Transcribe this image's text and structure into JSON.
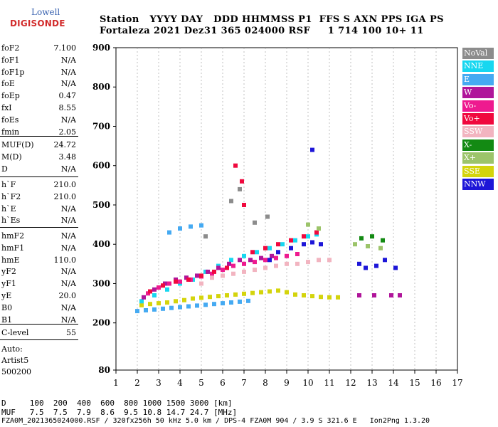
{
  "logo": {
    "top": "Lowell",
    "bottom": "DIGISONDE"
  },
  "header": {
    "line1": "Station   YYYY DAY   DDD HHMMSS P1  FFS S AXN PPS IGA PS",
    "line2": "Fortaleza 2021 Dez31 365 024000 RSF     1 714 100 10+ 11"
  },
  "params_a": [
    {
      "name": "foF2",
      "value": "7.100"
    },
    {
      "name": "foF1",
      "value": "N/A"
    },
    {
      "name": "foF1p",
      "value": "N/A"
    },
    {
      "name": "foE",
      "value": "N/A"
    },
    {
      "name": "foEp",
      "value": "0.47"
    },
    {
      "name": "fxI",
      "value": "8.55"
    },
    {
      "name": "foEs",
      "value": "N/A"
    },
    {
      "name": "fmin",
      "value": "2.05"
    }
  ],
  "params_b": [
    {
      "name": "MUF(D)",
      "value": "24.72"
    },
    {
      "name": "M(D)",
      "value": "3.48"
    },
    {
      "name": "D",
      "value": "N/A"
    }
  ],
  "params_c": [
    {
      "name": "h`F",
      "value": "210.0"
    },
    {
      "name": "h`F2",
      "value": "210.0"
    },
    {
      "name": "h`E",
      "value": "N/A"
    },
    {
      "name": "h`Es",
      "value": "N/A"
    }
  ],
  "params_d": [
    {
      "name": "hmF2",
      "value": "N/A"
    },
    {
      "name": "hmF1",
      "value": "N/A"
    },
    {
      "name": "hmE",
      "value": "110.0"
    },
    {
      "name": "yF2",
      "value": "N/A"
    },
    {
      "name": "yF1",
      "value": "N/A"
    },
    {
      "name": "yE",
      "value": "20.0"
    },
    {
      "name": "B0",
      "value": "N/A"
    },
    {
      "name": "B1",
      "value": "N/A"
    }
  ],
  "params_e": [
    {
      "name": "C-level",
      "value": "55"
    }
  ],
  "auto": {
    "line1": "Auto:",
    "line2": "Artist5",
    "line3": "500200"
  },
  "legend": [
    {
      "label": "NoVal",
      "color": "#8c8c8c"
    },
    {
      "label": "NNE",
      "color": "#17d7f0"
    },
    {
      "label": "E",
      "color": "#45aaf2"
    },
    {
      "label": "W",
      "color": "#b0159a"
    },
    {
      "label": "Vo-",
      "color": "#ee1a8f"
    },
    {
      "label": "Vo+",
      "color": "#f0093e"
    },
    {
      "label": "SSW",
      "color": "#f2b4c0"
    },
    {
      "label": "X-",
      "color": "#138a13"
    },
    {
      "label": "X+",
      "color": "#9cc46a"
    },
    {
      "label": "SSE",
      "color": "#d4d40c"
    },
    {
      "label": "NNW",
      "color": "#1d16d8"
    }
  ],
  "footer": {
    "line1": "D     100  200  400  600  800 1000 1500 3000 [km]",
    "line2": "MUF   7.5  7.5  7.9  8.6  9.5 10.8 14.7 24.7 [MHz]",
    "line3": "FZA0M_2021365024000.RSF / 320fx256h 50 kHz 5.0 km / DPS-4 FZA0M 904 / 3.9 S 321.6 E   Ion2Png 1.3.20"
  },
  "chart_data": {
    "type": "scatter",
    "title": "",
    "xlabel": "",
    "ylabel": "",
    "xlim": [
      1,
      17
    ],
    "ylim": [
      80,
      900
    ],
    "x_ticks": [
      1,
      2,
      3,
      4,
      5,
      6,
      7,
      8,
      9,
      10,
      11,
      12,
      13,
      14,
      15,
      16,
      17
    ],
    "y_ticks": [
      80,
      200,
      300,
      400,
      500,
      600,
      700,
      800,
      900
    ],
    "grid": "dashed vertical at integer MHz",
    "legend_position": "right",
    "clusters": [
      {
        "label": "SSE",
        "points": [
          [
            2.2,
            245
          ],
          [
            2.6,
            248
          ],
          [
            3.0,
            250
          ],
          [
            3.4,
            252
          ],
          [
            3.8,
            255
          ],
          [
            4.2,
            258
          ],
          [
            4.6,
            262
          ],
          [
            5.0,
            264
          ],
          [
            5.4,
            266
          ],
          [
            5.8,
            268
          ],
          [
            6.2,
            270
          ],
          [
            6.6,
            272
          ],
          [
            7.0,
            274
          ],
          [
            7.4,
            276
          ],
          [
            7.8,
            278
          ],
          [
            8.2,
            280
          ],
          [
            8.6,
            282
          ],
          [
            9.0,
            278
          ],
          [
            9.4,
            272
          ],
          [
            9.8,
            270
          ],
          [
            10.2,
            268
          ],
          [
            10.6,
            266
          ],
          [
            11.0,
            265
          ],
          [
            11.4,
            265
          ]
        ]
      },
      {
        "label": "E",
        "points": [
          [
            2.0,
            230
          ],
          [
            2.4,
            232
          ],
          [
            2.8,
            234
          ],
          [
            3.2,
            236
          ],
          [
            3.6,
            238
          ],
          [
            4.0,
            240
          ],
          [
            4.4,
            242
          ],
          [
            4.8,
            244
          ],
          [
            5.2,
            246
          ],
          [
            5.6,
            248
          ],
          [
            6.0,
            250
          ],
          [
            6.4,
            252
          ],
          [
            6.8,
            254
          ],
          [
            7.2,
            256
          ],
          [
            3.5,
            430
          ],
          [
            4.0,
            440
          ],
          [
            4.5,
            445
          ],
          [
            5.0,
            448
          ]
        ]
      },
      {
        "label": "NNE",
        "points": [
          [
            2.2,
            255
          ],
          [
            2.8,
            270
          ],
          [
            3.4,
            285
          ],
          [
            4.0,
            300
          ],
          [
            4.6,
            310
          ],
          [
            5.2,
            330
          ],
          [
            5.8,
            345
          ],
          [
            6.4,
            360
          ],
          [
            7.0,
            370
          ],
          [
            7.6,
            380
          ],
          [
            8.2,
            390
          ],
          [
            8.8,
            400
          ],
          [
            9.4,
            410
          ],
          [
            10.0,
            420
          ],
          [
            10.4,
            425
          ]
        ]
      },
      {
        "label": "W",
        "points": [
          [
            2.3,
            265
          ],
          [
            2.8,
            285
          ],
          [
            3.3,
            300
          ],
          [
            3.8,
            310
          ],
          [
            4.3,
            315
          ],
          [
            4.8,
            320
          ],
          [
            5.3,
            330
          ],
          [
            5.8,
            340
          ],
          [
            6.3,
            350
          ],
          [
            6.8,
            360
          ],
          [
            7.3,
            360
          ],
          [
            7.8,
            365
          ],
          [
            8.3,
            370
          ],
          [
            12.4,
            270
          ],
          [
            13.1,
            270
          ],
          [
            13.9,
            270
          ],
          [
            14.3,
            270
          ]
        ]
      },
      {
        "label": "Vo-",
        "points": [
          [
            2.5,
            275
          ],
          [
            3.0,
            290
          ],
          [
            3.5,
            300
          ],
          [
            4.0,
            305
          ],
          [
            4.5,
            310
          ],
          [
            5.0,
            318
          ],
          [
            5.5,
            325
          ],
          [
            6.0,
            335
          ],
          [
            6.5,
            345
          ],
          [
            7.0,
            350
          ],
          [
            7.5,
            355
          ],
          [
            8.0,
            360
          ],
          [
            8.5,
            365
          ],
          [
            9.0,
            370
          ],
          [
            9.5,
            375
          ]
        ]
      },
      {
        "label": "Vo+",
        "points": [
          [
            2.6,
            280
          ],
          [
            3.2,
            295
          ],
          [
            3.8,
            305
          ],
          [
            4.4,
            310
          ],
          [
            5.0,
            320
          ],
          [
            5.6,
            330
          ],
          [
            6.2,
            340
          ],
          [
            6.6,
            600
          ],
          [
            6.9,
            560
          ],
          [
            7.0,
            500
          ],
          [
            7.4,
            380
          ],
          [
            8.0,
            390
          ],
          [
            8.6,
            400
          ],
          [
            9.2,
            410
          ],
          [
            9.8,
            420
          ],
          [
            10.4,
            430
          ]
        ]
      },
      {
        "label": "SSW",
        "points": [
          [
            5.0,
            300
          ],
          [
            5.5,
            315
          ],
          [
            6.0,
            320
          ],
          [
            6.5,
            325
          ],
          [
            7.0,
            330
          ],
          [
            7.5,
            335
          ],
          [
            8.0,
            340
          ],
          [
            8.5,
            345
          ],
          [
            9.0,
            350
          ],
          [
            9.5,
            350
          ],
          [
            10.0,
            355
          ],
          [
            10.5,
            360
          ],
          [
            11.0,
            360
          ]
        ]
      },
      {
        "label": "X-",
        "points": [
          [
            12.5,
            415
          ],
          [
            13.0,
            420
          ],
          [
            13.5,
            410
          ]
        ]
      },
      {
        "label": "X+",
        "points": [
          [
            10.0,
            450
          ],
          [
            10.5,
            440
          ],
          [
            12.2,
            400
          ],
          [
            12.8,
            395
          ],
          [
            13.4,
            390
          ]
        ]
      },
      {
        "label": "NNW",
        "points": [
          [
            8.2,
            360
          ],
          [
            8.6,
            380
          ],
          [
            9.2,
            390
          ],
          [
            9.8,
            400
          ],
          [
            10.2,
            405
          ],
          [
            10.6,
            400
          ],
          [
            12.4,
            350
          ],
          [
            12.7,
            340
          ],
          [
            13.2,
            345
          ],
          [
            13.6,
            360
          ],
          [
            14.1,
            340
          ],
          [
            10.2,
            640
          ]
        ]
      },
      {
        "label": "NoVal",
        "points": [
          [
            5.2,
            420
          ],
          [
            6.4,
            510
          ],
          [
            6.8,
            540
          ],
          [
            7.5,
            455
          ],
          [
            8.1,
            470
          ]
        ]
      }
    ]
  }
}
